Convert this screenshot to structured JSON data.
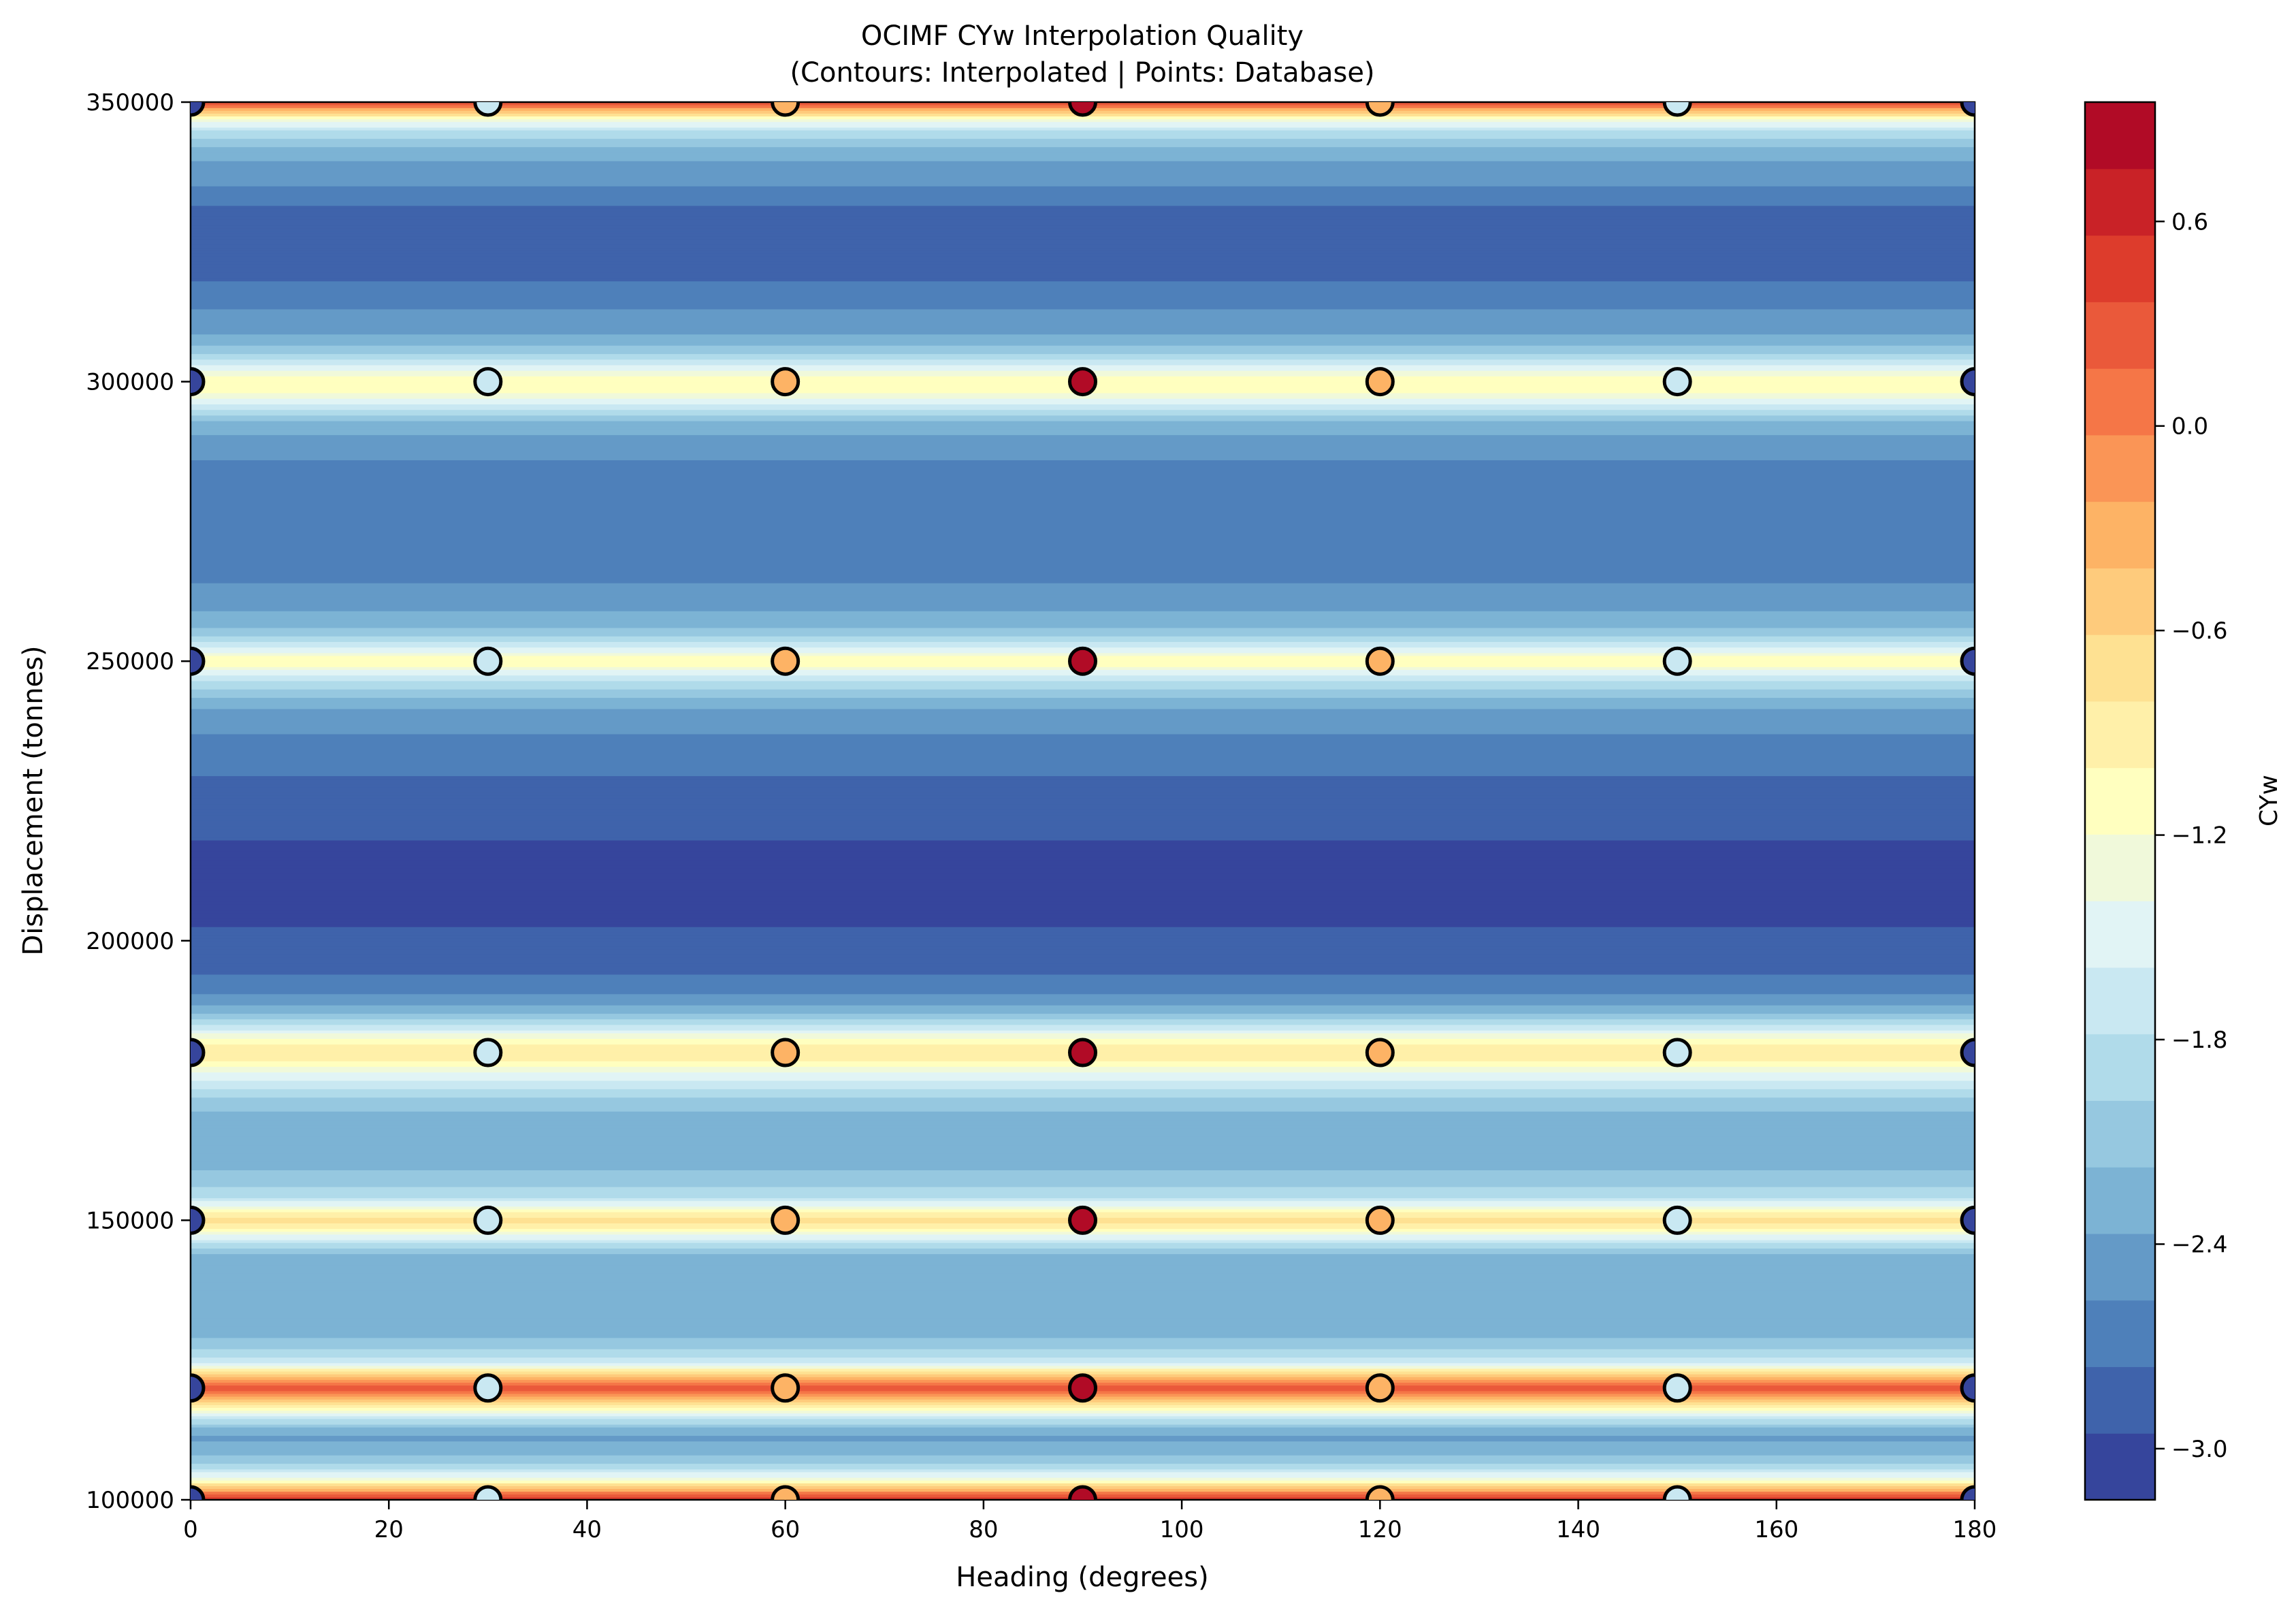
{
  "chart_data": {
    "type": "heatmap",
    "title": "OCIMF CYw Interpolation Quality",
    "subtitle": "(Contours: Interpolated | Points: Database)",
    "xlabel": "Heading (degrees)",
    "ylabel": "Displacement (tonnes)",
    "colorbar_label": "CYw",
    "xlim": [
      0,
      180
    ],
    "ylim": [
      100000,
      350000
    ],
    "x_ticks": [
      0,
      20,
      40,
      60,
      80,
      100,
      120,
      140,
      160,
      180
    ],
    "x_tick_labels": [
      "0",
      "20",
      "40",
      "60",
      "80",
      "100",
      "120",
      "140",
      "160",
      "180"
    ],
    "y_ticks": [
      100000,
      150000,
      200000,
      250000,
      300000,
      350000
    ],
    "y_tick_labels": [
      "100000",
      "150000",
      "200000",
      "250000",
      "300000",
      "350000"
    ],
    "colorbar_range": [
      -3.15,
      0.95
    ],
    "colorbar_ticks": [
      -3.0,
      -2.4,
      -1.8,
      -1.2,
      -0.6,
      0.0,
      0.6
    ],
    "colorbar_tick_labels": [
      "−3.0",
      "−2.4",
      "−1.8",
      "−1.2",
      "−0.6",
      "0.0",
      "0.6"
    ],
    "colormap": [
      "#313695",
      "#4575b4",
      "#74add1",
      "#abd9e9",
      "#e0f3f8",
      "#ffffbf",
      "#fee090",
      "#fdae61",
      "#f46d43",
      "#d73027",
      "#a50026"
    ],
    "marker_edge_color": "#000000",
    "database_headings": [
      0,
      30,
      60,
      90,
      120,
      150,
      180
    ],
    "database_displacements": [
      100000,
      120000,
      150000,
      180000,
      250000,
      300000,
      350000
    ],
    "database_points_by_heading": [
      -3.05,
      -1.7,
      -0.3,
      0.8,
      -0.3,
      -1.7,
      -3.05
    ],
    "interpolated_band_profile": [
      [
        100000,
        0.6
      ],
      [
        102000,
        -0.4
      ],
      [
        104000,
        -1.4
      ],
      [
        106000,
        -1.9
      ],
      [
        108000,
        -2.2
      ],
      [
        111000,
        -2.4
      ],
      [
        113000,
        -2.2
      ],
      [
        115000,
        -1.6
      ],
      [
        117000,
        -0.9
      ],
      [
        118500,
        -0.2
      ],
      [
        120000,
        0.3
      ],
      [
        121500,
        -0.2
      ],
      [
        123000,
        -0.9
      ],
      [
        125000,
        -1.7
      ],
      [
        128000,
        -2.1
      ],
      [
        131000,
        -2.3
      ],
      [
        135000,
        -2.3
      ],
      [
        140000,
        -2.3
      ],
      [
        144000,
        -2.2
      ],
      [
        146000,
        -1.8
      ],
      [
        148000,
        -1.2
      ],
      [
        150000,
        -0.6
      ],
      [
        152000,
        -1.2
      ],
      [
        154000,
        -1.8
      ],
      [
        157000,
        -2.1
      ],
      [
        162000,
        -2.3
      ],
      [
        168000,
        -2.3
      ],
      [
        172000,
        -2.0
      ],
      [
        175000,
        -1.6
      ],
      [
        177500,
        -1.2
      ],
      [
        180000,
        -0.8
      ],
      [
        182500,
        -1.2
      ],
      [
        185000,
        -1.8
      ],
      [
        188000,
        -2.3
      ],
      [
        191000,
        -2.6
      ],
      [
        195000,
        -2.8
      ],
      [
        200000,
        -2.9
      ],
      [
        205000,
        -3.0
      ],
      [
        210000,
        -3.1
      ],
      [
        215000,
        -3.1
      ],
      [
        218000,
        -2.95
      ],
      [
        225000,
        -2.9
      ],
      [
        230000,
        -2.75
      ],
      [
        236000,
        -2.6
      ],
      [
        241000,
        -2.4
      ],
      [
        245000,
        -2.0
      ],
      [
        247500,
        -1.6
      ],
      [
        250000,
        -1.0
      ],
      [
        252500,
        -1.6
      ],
      [
        255000,
        -2.1
      ],
      [
        260000,
        -2.45
      ],
      [
        265000,
        -2.6
      ],
      [
        275000,
        -2.65
      ],
      [
        285000,
        -2.6
      ],
      [
        289000,
        -2.45
      ],
      [
        293000,
        -2.2
      ],
      [
        296000,
        -1.6
      ],
      [
        298000,
        -1.2
      ],
      [
        300000,
        -1.0
      ],
      [
        302000,
        -1.4
      ],
      [
        305000,
        -2.0
      ],
      [
        310000,
        -2.5
      ],
      [
        315000,
        -2.6
      ],
      [
        320000,
        -2.85
      ],
      [
        330000,
        -2.85
      ],
      [
        334000,
        -2.6
      ],
      [
        338000,
        -2.45
      ],
      [
        342000,
        -2.2
      ],
      [
        345000,
        -1.8
      ],
      [
        347000,
        -1.2
      ],
      [
        348500,
        -0.4
      ],
      [
        350000,
        0.4
      ]
    ]
  }
}
